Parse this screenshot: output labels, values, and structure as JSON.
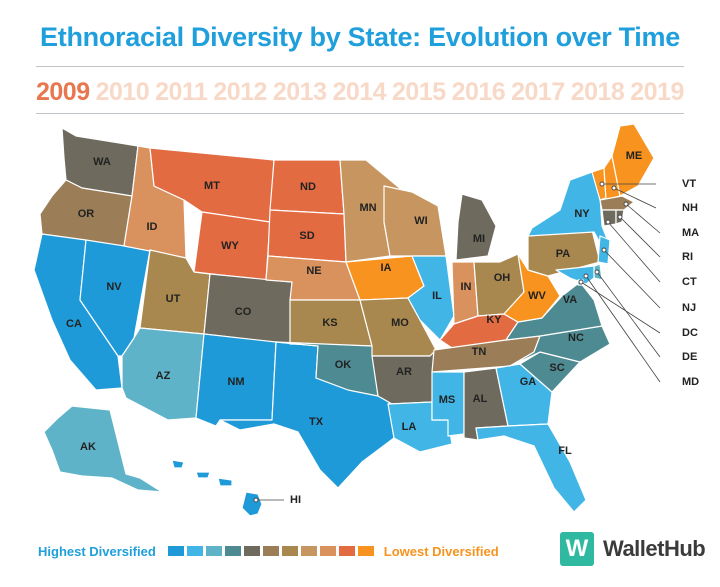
{
  "title": "Ethnoracial Diversity by State: Evolution over Time",
  "years": [
    "2009",
    "2010",
    "2011",
    "2012",
    "2013",
    "2014",
    "2015",
    "2016",
    "2017",
    "2018",
    "2019"
  ],
  "active_year": "2009",
  "legend": {
    "high_label": "Highest Diversified",
    "low_label": "Lowest Diversified",
    "scale_colors": [
      "#1f9ad9",
      "#41b6e6",
      "#5fb3c8",
      "#4e8a92",
      "#6e6a5d",
      "#9b7e58",
      "#a9884f",
      "#c79660",
      "#d9915e",
      "#e36b42",
      "#f7931e"
    ]
  },
  "brand": {
    "logo_letter": "W",
    "name": "WalletHub"
  },
  "states": [
    {
      "id": "WA",
      "tier": 4
    },
    {
      "id": "OR",
      "tier": 5
    },
    {
      "id": "CA",
      "tier": 0
    },
    {
      "id": "NV",
      "tier": 0
    },
    {
      "id": "ID",
      "tier": 8
    },
    {
      "id": "MT",
      "tier": 9
    },
    {
      "id": "WY",
      "tier": 9
    },
    {
      "id": "UT",
      "tier": 6
    },
    {
      "id": "AZ",
      "tier": 2
    },
    {
      "id": "CO",
      "tier": 4
    },
    {
      "id": "NM",
      "tier": 0
    },
    {
      "id": "TX",
      "tier": 0
    },
    {
      "id": "ND",
      "tier": 9
    },
    {
      "id": "SD",
      "tier": 9
    },
    {
      "id": "NE",
      "tier": 8
    },
    {
      "id": "KS",
      "tier": 6
    },
    {
      "id": "OK",
      "tier": 3
    },
    {
      "id": "MN",
      "tier": 7
    },
    {
      "id": "IA",
      "tier": 10
    },
    {
      "id": "MO",
      "tier": 6
    },
    {
      "id": "AR",
      "tier": 4
    },
    {
      "id": "LA",
      "tier": 1
    },
    {
      "id": "WI",
      "tier": 7
    },
    {
      "id": "IL",
      "tier": 1
    },
    {
      "id": "MI",
      "tier": 4
    },
    {
      "id": "IN",
      "tier": 8
    },
    {
      "id": "OH",
      "tier": 6
    },
    {
      "id": "KY",
      "tier": 9
    },
    {
      "id": "TN",
      "tier": 5
    },
    {
      "id": "MS",
      "tier": 1
    },
    {
      "id": "AL",
      "tier": 4
    },
    {
      "id": "GA",
      "tier": 1
    },
    {
      "id": "FL",
      "tier": 1
    },
    {
      "id": "SC",
      "tier": 3
    },
    {
      "id": "NC",
      "tier": 3
    },
    {
      "id": "VA",
      "tier": 3
    },
    {
      "id": "WV",
      "tier": 10
    },
    {
      "id": "PA",
      "tier": 6
    },
    {
      "id": "NY",
      "tier": 1
    },
    {
      "id": "ME",
      "tier": 10
    },
    {
      "id": "AK",
      "tier": 2
    },
    {
      "id": "HI",
      "tier": 0
    },
    {
      "id": "VT",
      "tier": 10
    },
    {
      "id": "NH",
      "tier": 10
    },
    {
      "id": "MA",
      "tier": 5
    },
    {
      "id": "RI",
      "tier": 4
    },
    {
      "id": "CT",
      "tier": 4
    },
    {
      "id": "NJ",
      "tier": 1
    },
    {
      "id": "DE",
      "tier": 2
    },
    {
      "id": "MD",
      "tier": 1
    },
    {
      "id": "DC",
      "tier": 0
    }
  ]
}
